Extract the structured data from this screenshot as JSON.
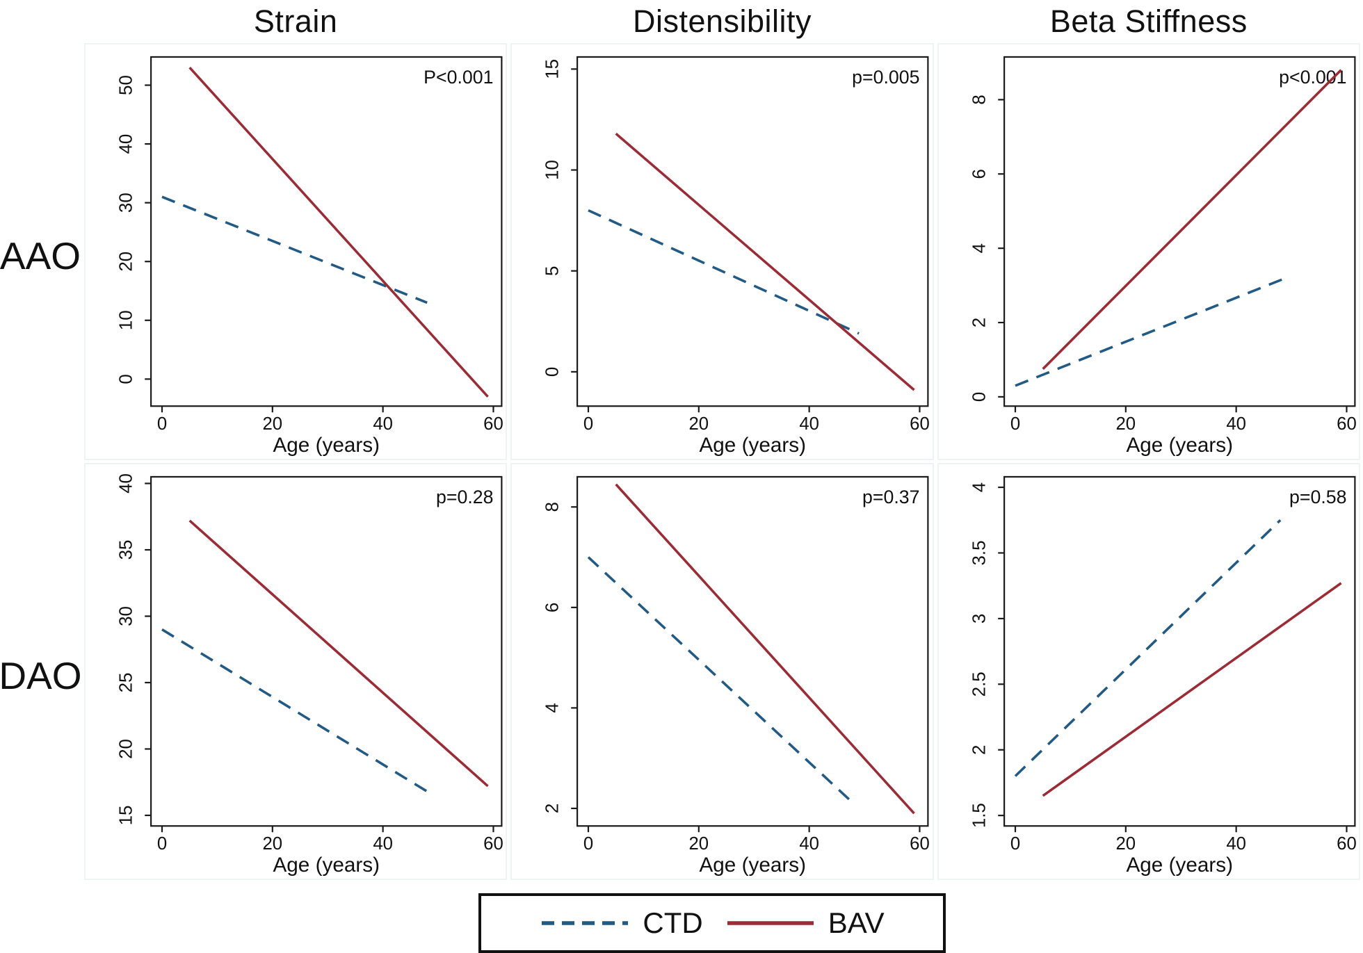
{
  "column_titles": [
    "Strain",
    "Distensibility",
    "Beta Stiffness"
  ],
  "row_labels": [
    "AAO",
    "DAO"
  ],
  "legend": {
    "ctd_label": "CTD",
    "bav_label": "BAV"
  },
  "colors": {
    "ctd": "#215a84",
    "bav": "#9d2b35",
    "axis": "#1a1a1a",
    "text": "#111111"
  },
  "chart_data": [
    {
      "type": "line",
      "row": "AAO",
      "column": "Strain",
      "p_label": "P<0.001",
      "xlabel": "Age (years)",
      "xticks": [
        0,
        20,
        40,
        60
      ],
      "xlim": [
        -2,
        61.5
      ],
      "yticks": [
        0,
        10,
        20,
        30,
        40,
        50
      ],
      "ylim": [
        -4.6,
        54.8
      ],
      "grid": false,
      "legend_position": "none",
      "series": [
        {
          "name": "CTD",
          "style": "dashed",
          "x": [
            0,
            48
          ],
          "y": [
            31,
            13
          ]
        },
        {
          "name": "BAV",
          "style": "solid",
          "x": [
            5,
            59
          ],
          "y": [
            53,
            -3
          ]
        }
      ]
    },
    {
      "type": "line",
      "row": "AAO",
      "column": "Distensibility",
      "p_label": "p=0.005",
      "xlabel": "Age (years)",
      "xticks": [
        0,
        20,
        40,
        60
      ],
      "xlim": [
        -2,
        61.5
      ],
      "yticks": [
        0,
        5,
        10,
        15
      ],
      "ylim": [
        -1.7,
        15.6
      ],
      "grid": false,
      "legend_position": "none",
      "series": [
        {
          "name": "CTD",
          "style": "dashed",
          "x": [
            0,
            49
          ],
          "y": [
            8,
            1.9
          ]
        },
        {
          "name": "BAV",
          "style": "solid",
          "x": [
            5,
            59
          ],
          "y": [
            11.8,
            -0.9
          ]
        }
      ]
    },
    {
      "type": "line",
      "row": "AAO",
      "column": "Beta Stiffness",
      "p_label": "p<0.001",
      "xlabel": "Age (years)",
      "xticks": [
        0,
        20,
        40,
        60
      ],
      "xlim": [
        -2,
        61.5
      ],
      "yticks": [
        0,
        2,
        4,
        6,
        8
      ],
      "ylim": [
        -0.25,
        9.15
      ],
      "grid": false,
      "legend_position": "none",
      "series": [
        {
          "name": "CTD",
          "style": "dashed",
          "x": [
            0,
            49
          ],
          "y": [
            0.3,
            3.2
          ]
        },
        {
          "name": "BAV",
          "style": "solid",
          "x": [
            5,
            59
          ],
          "y": [
            0.75,
            8.8
          ]
        }
      ]
    },
    {
      "type": "line",
      "row": "DAO",
      "column": "Strain",
      "p_label": "p=0.28",
      "xlabel": "Age (years)",
      "xticks": [
        0,
        20,
        40,
        60
      ],
      "xlim": [
        -2,
        61.5
      ],
      "yticks": [
        15,
        20,
        25,
        30,
        35,
        40
      ],
      "ylim": [
        14.2,
        40.5
      ],
      "grid": false,
      "legend_position": "none",
      "series": [
        {
          "name": "CTD",
          "style": "dashed",
          "x": [
            0,
            48
          ],
          "y": [
            29,
            16.8
          ]
        },
        {
          "name": "BAV",
          "style": "solid",
          "x": [
            5,
            59
          ],
          "y": [
            37.2,
            17.2
          ]
        }
      ]
    },
    {
      "type": "line",
      "row": "DAO",
      "column": "Distensibility",
      "p_label": "p=0.37",
      "xlabel": "Age (years)",
      "xticks": [
        0,
        20,
        40,
        60
      ],
      "xlim": [
        -2,
        61.5
      ],
      "yticks": [
        2,
        4,
        6,
        8
      ],
      "ylim": [
        1.65,
        8.6
      ],
      "grid": false,
      "legend_position": "none",
      "series": [
        {
          "name": "CTD",
          "style": "dashed",
          "x": [
            0,
            48
          ],
          "y": [
            7.0,
            2.1
          ]
        },
        {
          "name": "BAV",
          "style": "solid",
          "x": [
            5,
            59
          ],
          "y": [
            8.45,
            1.9
          ]
        }
      ]
    },
    {
      "type": "line",
      "row": "DAO",
      "column": "Beta Stiffness",
      "p_label": "p=0.58",
      "xlabel": "Age (years)",
      "xticks": [
        0,
        20,
        40,
        60
      ],
      "xlim": [
        -2,
        61.5
      ],
      "yticks": [
        1.5,
        2,
        2.5,
        3,
        3.5,
        4
      ],
      "ylim": [
        1.42,
        4.08
      ],
      "grid": false,
      "legend_position": "none",
      "series": [
        {
          "name": "CTD",
          "style": "dashed",
          "x": [
            0,
            48
          ],
          "y": [
            1.8,
            3.75
          ]
        },
        {
          "name": "BAV",
          "style": "solid",
          "x": [
            5,
            59
          ],
          "y": [
            1.65,
            3.27
          ]
        }
      ]
    }
  ]
}
